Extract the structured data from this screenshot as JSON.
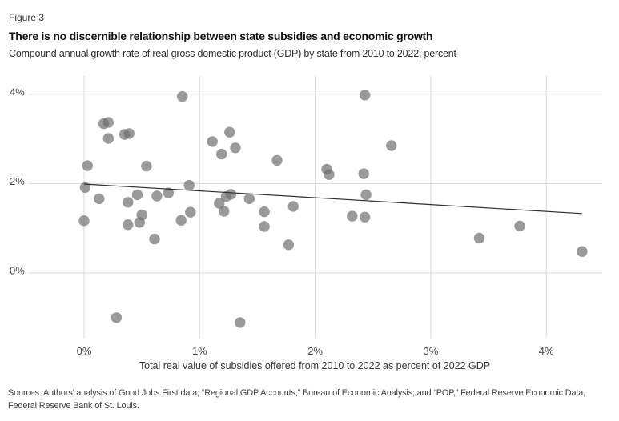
{
  "figure_label": "Figure 3",
  "title": "There is no discernible relationship between state subsidies and economic growth",
  "subtitle": "Compound annual growth rate of real gross domestic product (GDP) by state from 2010 to 2022, percent",
  "sources": "Sources: Authors’ analysis of Good Jobs First data; “Regional GDP Accounts,” Bureau of Economic Analysis; and “POP,” Federal Reserve Economic Data, Federal Reserve Bank of St. Louis.",
  "chart_data": {
    "type": "scatter",
    "xlabel": "Total real value of subsidies offered from 2010 to 2022 as percent of 2022 GDP",
    "ylabel": "",
    "x_ticks": [
      {
        "value": 0,
        "label": "0%"
      },
      {
        "value": 1,
        "label": "1%"
      },
      {
        "value": 2,
        "label": "2%"
      },
      {
        "value": 3,
        "label": "3%"
      },
      {
        "value": 4,
        "label": "4%"
      }
    ],
    "y_ticks": [
      {
        "value": 0,
        "label": "0%"
      },
      {
        "value": 2,
        "label": "2%"
      },
      {
        "value": 4,
        "label": "4%"
      }
    ],
    "xlim": [
      -0.45,
      4.55
    ],
    "ylim": [
      -1.45,
      4.4
    ],
    "grid": true,
    "legend": "none",
    "points": [
      [
        0.85,
        3.95
      ],
      [
        2.43,
        3.98
      ],
      [
        0.17,
        3.34
      ],
      [
        0.21,
        3.37
      ],
      [
        0.21,
        3.01
      ],
      [
        0.35,
        3.1
      ],
      [
        0.39,
        3.12
      ],
      [
        1.11,
        2.94
      ],
      [
        1.26,
        3.15
      ],
      [
        1.31,
        2.8
      ],
      [
        1.19,
        2.66
      ],
      [
        0.03,
        2.4
      ],
      [
        0.54,
        2.39
      ],
      [
        2.66,
        2.85
      ],
      [
        1.67,
        2.52
      ],
      [
        2.1,
        2.32
      ],
      [
        2.12,
        2.2
      ],
      [
        2.42,
        2.22
      ],
      [
        0.01,
        1.91
      ],
      [
        0.13,
        1.66
      ],
      [
        0.0,
        1.17
      ],
      [
        0.38,
        1.58
      ],
      [
        0.46,
        1.75
      ],
      [
        0.5,
        1.3
      ],
      [
        0.48,
        1.13
      ],
      [
        0.38,
        1.08
      ],
      [
        0.63,
        1.72
      ],
      [
        0.73,
        1.79
      ],
      [
        0.61,
        0.76
      ],
      [
        0.91,
        1.96
      ],
      [
        0.84,
        1.18
      ],
      [
        0.92,
        1.36
      ],
      [
        0.28,
        -1.0
      ],
      [
        1.35,
        -1.11
      ],
      [
        1.17,
        1.56
      ],
      [
        1.23,
        1.71
      ],
      [
        1.27,
        1.76
      ],
      [
        1.21,
        1.38
      ],
      [
        1.43,
        1.66
      ],
      [
        1.56,
        1.37
      ],
      [
        1.56,
        1.04
      ],
      [
        1.81,
        1.49
      ],
      [
        1.77,
        0.63
      ],
      [
        2.44,
        1.75
      ],
      [
        2.32,
        1.27
      ],
      [
        2.43,
        1.25
      ],
      [
        3.42,
        0.78
      ],
      [
        3.77,
        1.05
      ],
      [
        4.31,
        0.48
      ]
    ],
    "trend_line": {
      "x1": 0.0,
      "y1": 1.99,
      "x2": 4.31,
      "y2": 1.33
    },
    "colors": {
      "dot": "#6f6f6f",
      "dot_opacity": 0.7,
      "grid": "#d9d9d9",
      "trend": "#2e2e2e",
      "tick_label": "#444444",
      "axis_label": "#383838"
    }
  }
}
